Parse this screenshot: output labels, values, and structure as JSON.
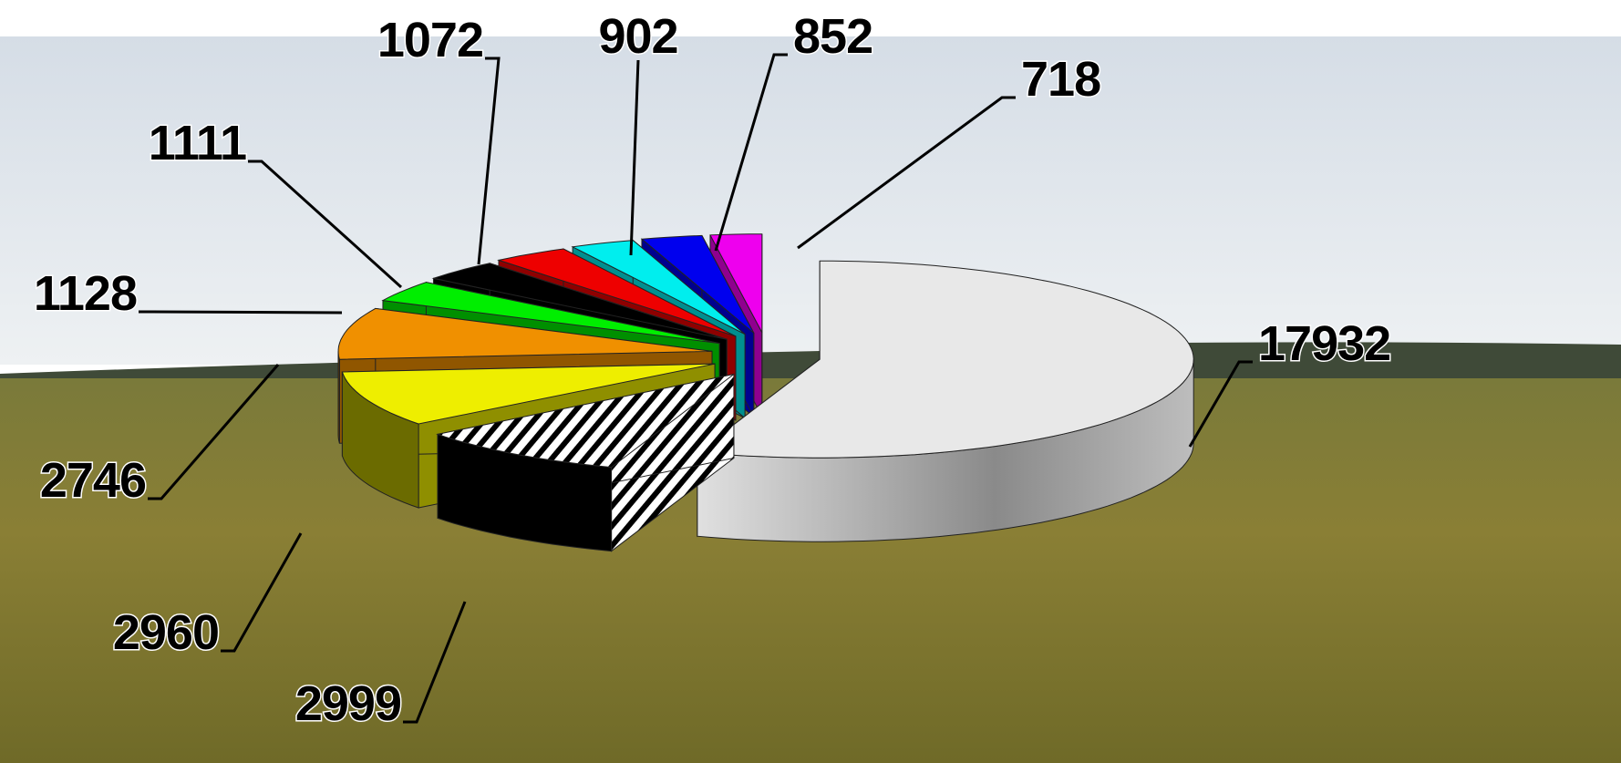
{
  "chart_data": {
    "type": "pie3d",
    "values": [
      17932,
      2999,
      2960,
      2746,
      1128,
      1111,
      1072,
      902,
      852,
      718
    ],
    "colors": [
      "#e8e8e8",
      "#ffffff",
      "#eeee00",
      "#f09000",
      "#00ee00",
      "#000000",
      "#ee0000",
      "#00eeee",
      "#0000ee",
      "#ee00ee"
    ],
    "patterns": [
      "solid",
      "hatch",
      "solid",
      "solid",
      "solid",
      "solid",
      "solid",
      "solid",
      "solid",
      "solid"
    ],
    "start_angle": 0,
    "direction": "clockwise"
  }
}
